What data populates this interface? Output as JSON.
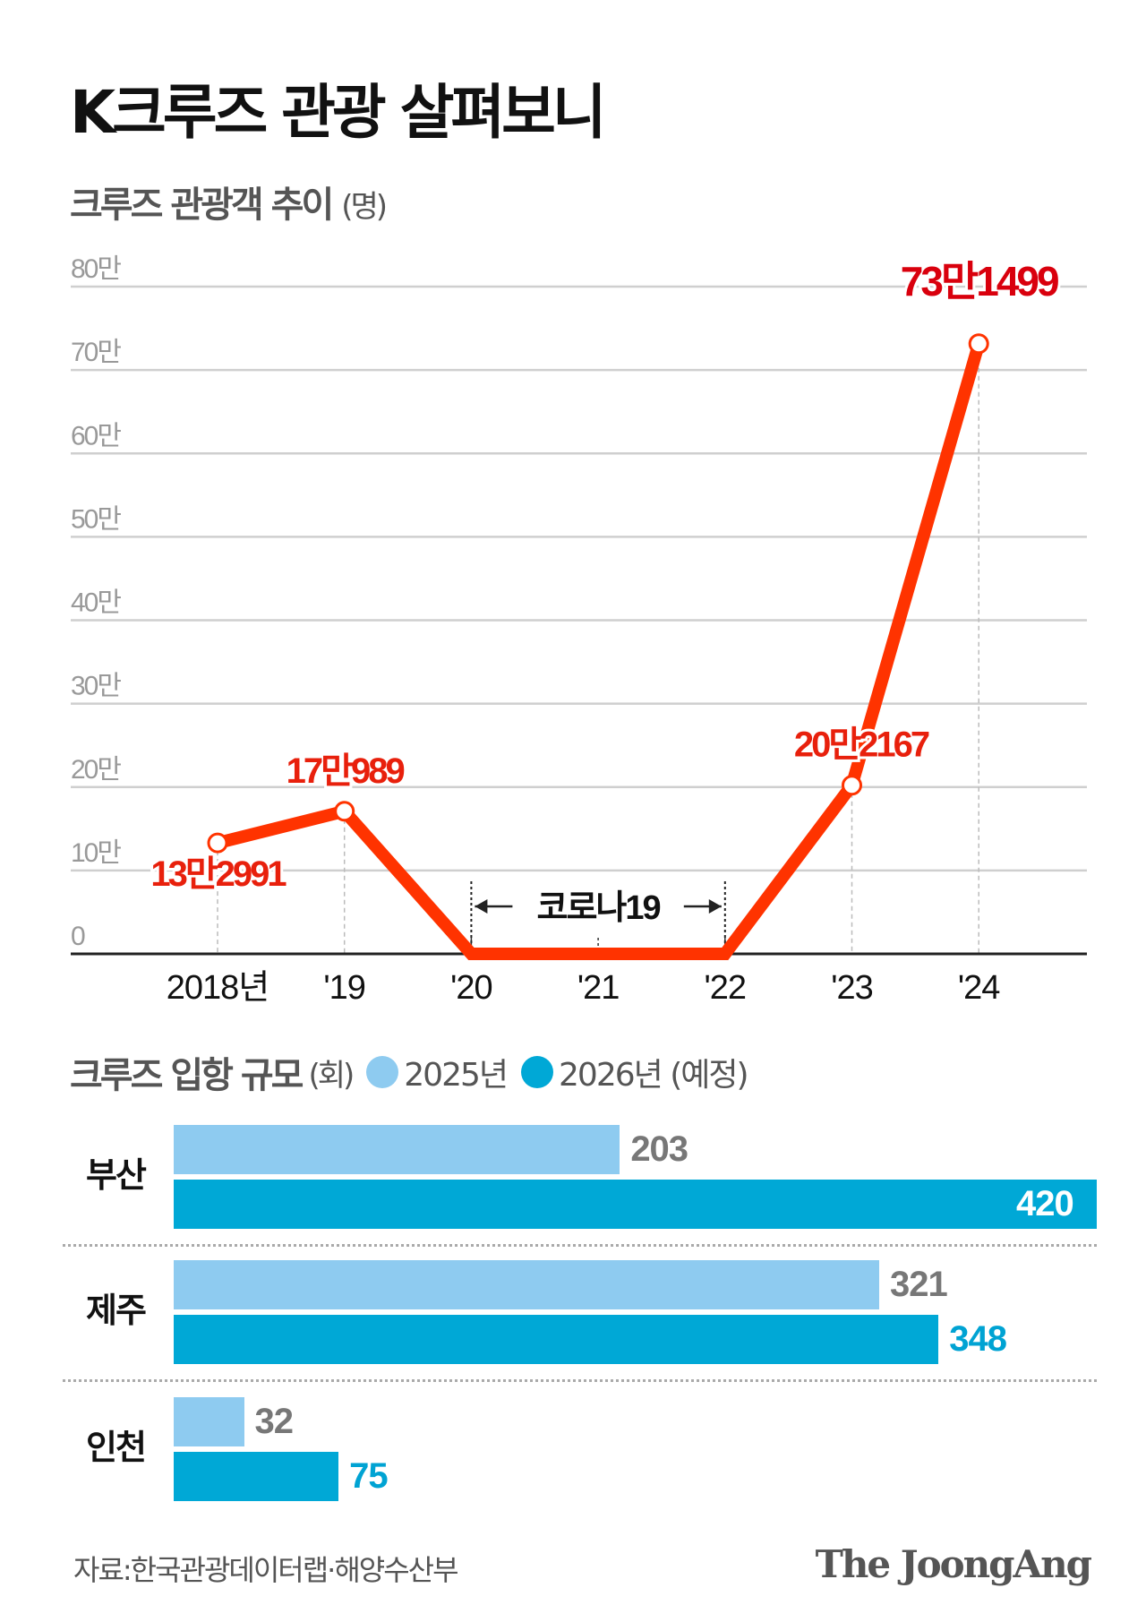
{
  "title": "K크루즈 관광 살펴보니",
  "chart_data": [
    {
      "type": "line",
      "title": "크루즈 관광객 추이",
      "unit": "(명)",
      "categories": [
        "2018년",
        "'19",
        "'20",
        "'21",
        "'22",
        "'23",
        "'24"
      ],
      "values": [
        132991,
        170989,
        0,
        0,
        0,
        202167,
        731499
      ],
      "data_labels": [
        "13만2991",
        "17만989",
        "",
        "",
        "",
        "20만2167",
        "73만1499"
      ],
      "y_ticks": [
        "0",
        "10만",
        "20만",
        "30만",
        "40만",
        "50만",
        "60만",
        "70만",
        "80만"
      ],
      "ylim": [
        0,
        800000
      ],
      "grid": true,
      "annotation": {
        "text": "코로나19",
        "from": "'20",
        "to": "'22"
      },
      "line_color": "#ff3300",
      "label_color": "#e8200c",
      "peak_label_color": "#d9000d"
    },
    {
      "type": "bar",
      "title": "크루즈 입항 규모",
      "unit": "(회)",
      "categories": [
        "부산",
        "제주",
        "인천"
      ],
      "series": [
        {
          "name": "2025년",
          "values": [
            203,
            321,
            32
          ],
          "color": "#8ecbf0",
          "label_color": "#777777"
        },
        {
          "name": "2026년 (예정)",
          "values": [
            420,
            348,
            75
          ],
          "color": "#00a8d6",
          "label_color": "#00a3d3"
        }
      ],
      "legend": "top"
    }
  ],
  "source": "자료:한국관광데이터랩·해양수산부",
  "logo": "The JoongAng"
}
